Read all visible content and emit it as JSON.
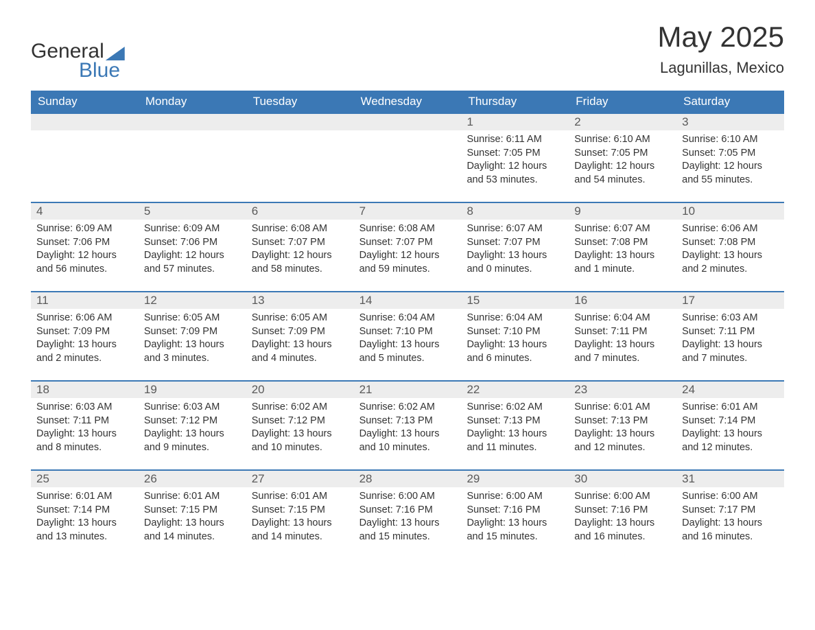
{
  "brand": {
    "word1": "General",
    "word2": "Blue",
    "accent_color": "#3b78b5",
    "text_color": "#333333"
  },
  "title": {
    "month_year": "May 2025",
    "location": "Lagunillas, Mexico",
    "title_fontsize": 42,
    "location_fontsize": 22
  },
  "calendar": {
    "type": "table",
    "header_bg": "#3b78b5",
    "header_text_color": "#ffffff",
    "row_divider_color": "#3b78b5",
    "daynum_bg": "#ededed",
    "daynum_color": "#5a5a5a",
    "body_text_color": "#333333",
    "background_color": "#ffffff",
    "columns": [
      "Sunday",
      "Monday",
      "Tuesday",
      "Wednesday",
      "Thursday",
      "Friday",
      "Saturday"
    ],
    "weeks": [
      [
        null,
        null,
        null,
        null,
        {
          "n": "1",
          "sunrise": "6:11 AM",
          "sunset": "7:05 PM",
          "daylight": "12 hours and 53 minutes."
        },
        {
          "n": "2",
          "sunrise": "6:10 AM",
          "sunset": "7:05 PM",
          "daylight": "12 hours and 54 minutes."
        },
        {
          "n": "3",
          "sunrise": "6:10 AM",
          "sunset": "7:05 PM",
          "daylight": "12 hours and 55 minutes."
        }
      ],
      [
        {
          "n": "4",
          "sunrise": "6:09 AM",
          "sunset": "7:06 PM",
          "daylight": "12 hours and 56 minutes."
        },
        {
          "n": "5",
          "sunrise": "6:09 AM",
          "sunset": "7:06 PM",
          "daylight": "12 hours and 57 minutes."
        },
        {
          "n": "6",
          "sunrise": "6:08 AM",
          "sunset": "7:07 PM",
          "daylight": "12 hours and 58 minutes."
        },
        {
          "n": "7",
          "sunrise": "6:08 AM",
          "sunset": "7:07 PM",
          "daylight": "12 hours and 59 minutes."
        },
        {
          "n": "8",
          "sunrise": "6:07 AM",
          "sunset": "7:07 PM",
          "daylight": "13 hours and 0 minutes."
        },
        {
          "n": "9",
          "sunrise": "6:07 AM",
          "sunset": "7:08 PM",
          "daylight": "13 hours and 1 minute."
        },
        {
          "n": "10",
          "sunrise": "6:06 AM",
          "sunset": "7:08 PM",
          "daylight": "13 hours and 2 minutes."
        }
      ],
      [
        {
          "n": "11",
          "sunrise": "6:06 AM",
          "sunset": "7:09 PM",
          "daylight": "13 hours and 2 minutes."
        },
        {
          "n": "12",
          "sunrise": "6:05 AM",
          "sunset": "7:09 PM",
          "daylight": "13 hours and 3 minutes."
        },
        {
          "n": "13",
          "sunrise": "6:05 AM",
          "sunset": "7:09 PM",
          "daylight": "13 hours and 4 minutes."
        },
        {
          "n": "14",
          "sunrise": "6:04 AM",
          "sunset": "7:10 PM",
          "daylight": "13 hours and 5 minutes."
        },
        {
          "n": "15",
          "sunrise": "6:04 AM",
          "sunset": "7:10 PM",
          "daylight": "13 hours and 6 minutes."
        },
        {
          "n": "16",
          "sunrise": "6:04 AM",
          "sunset": "7:11 PM",
          "daylight": "13 hours and 7 minutes."
        },
        {
          "n": "17",
          "sunrise": "6:03 AM",
          "sunset": "7:11 PM",
          "daylight": "13 hours and 7 minutes."
        }
      ],
      [
        {
          "n": "18",
          "sunrise": "6:03 AM",
          "sunset": "7:11 PM",
          "daylight": "13 hours and 8 minutes."
        },
        {
          "n": "19",
          "sunrise": "6:03 AM",
          "sunset": "7:12 PM",
          "daylight": "13 hours and 9 minutes."
        },
        {
          "n": "20",
          "sunrise": "6:02 AM",
          "sunset": "7:12 PM",
          "daylight": "13 hours and 10 minutes."
        },
        {
          "n": "21",
          "sunrise": "6:02 AM",
          "sunset": "7:13 PM",
          "daylight": "13 hours and 10 minutes."
        },
        {
          "n": "22",
          "sunrise": "6:02 AM",
          "sunset": "7:13 PM",
          "daylight": "13 hours and 11 minutes."
        },
        {
          "n": "23",
          "sunrise": "6:01 AM",
          "sunset": "7:13 PM",
          "daylight": "13 hours and 12 minutes."
        },
        {
          "n": "24",
          "sunrise": "6:01 AM",
          "sunset": "7:14 PM",
          "daylight": "13 hours and 12 minutes."
        }
      ],
      [
        {
          "n": "25",
          "sunrise": "6:01 AM",
          "sunset": "7:14 PM",
          "daylight": "13 hours and 13 minutes."
        },
        {
          "n": "26",
          "sunrise": "6:01 AM",
          "sunset": "7:15 PM",
          "daylight": "13 hours and 14 minutes."
        },
        {
          "n": "27",
          "sunrise": "6:01 AM",
          "sunset": "7:15 PM",
          "daylight": "13 hours and 14 minutes."
        },
        {
          "n": "28",
          "sunrise": "6:00 AM",
          "sunset": "7:16 PM",
          "daylight": "13 hours and 15 minutes."
        },
        {
          "n": "29",
          "sunrise": "6:00 AM",
          "sunset": "7:16 PM",
          "daylight": "13 hours and 15 minutes."
        },
        {
          "n": "30",
          "sunrise": "6:00 AM",
          "sunset": "7:16 PM",
          "daylight": "13 hours and 16 minutes."
        },
        {
          "n": "31",
          "sunrise": "6:00 AM",
          "sunset": "7:17 PM",
          "daylight": "13 hours and 16 minutes."
        }
      ]
    ],
    "labels": {
      "sunrise_prefix": "Sunrise: ",
      "sunset_prefix": "Sunset: ",
      "daylight_prefix": "Daylight: "
    }
  }
}
